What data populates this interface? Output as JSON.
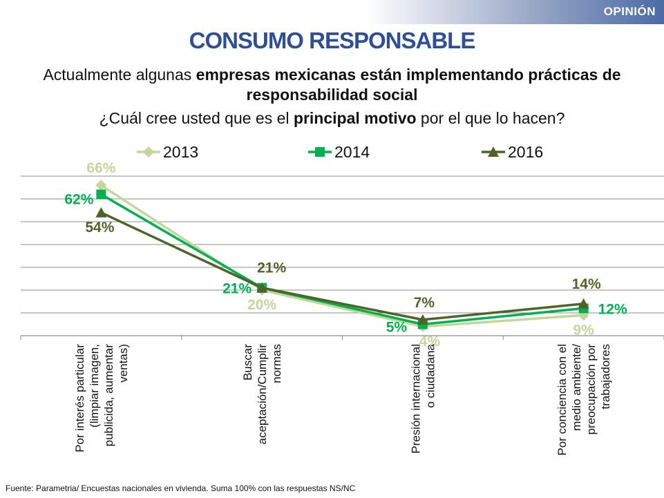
{
  "header": {
    "section_label": "OPINIÓN",
    "title": "CONSUMO RESPONSABLE",
    "subtitle_pre": "Actualmente algunas ",
    "subtitle_bold": "empresas mexicanas están implementando prácticas de responsabilidad social",
    "question_pre": "¿Cuál cree usted que es el ",
    "question_bold": "principal motivo",
    "question_post": " por el que lo hacen?"
  },
  "source": "Fuente: Parametria/ Encuestas nacionales en vivienda. Suma 100% con las respuestas NS/NC",
  "colors": {
    "s2013": "#c3d69b",
    "s2014": "#00b050",
    "s2016": "#4f6228",
    "title": "#2f4f95"
  },
  "chart_data": {
    "type": "line",
    "categories": [
      [
        "Por interés particular",
        "(limpiar imagen,",
        "publicida, aumentar",
        "ventas)"
      ],
      [
        "Buscar",
        "aceptación/Cumplir",
        "normas"
      ],
      [
        "Presión internacional",
        "o ciudadana"
      ],
      [
        "Por conciencia con el",
        "medio ambiente/",
        "preocupación por",
        "trabajadores"
      ]
    ],
    "series": [
      {
        "name": "2013",
        "values": [
          66,
          20,
          4,
          9
        ],
        "labels": [
          "66%",
          "20%",
          "4%",
          "9%"
        ],
        "marker": "diamond"
      },
      {
        "name": "2014",
        "values": [
          62,
          21,
          5,
          12
        ],
        "labels": [
          "62%",
          "21%",
          "5%",
          "12%"
        ],
        "marker": "square"
      },
      {
        "name": "2016",
        "values": [
          54,
          21,
          7,
          14
        ],
        "labels": [
          "54%",
          "21%",
          "7%",
          "14%"
        ],
        "marker": "triangle"
      }
    ],
    "ylim": [
      0,
      70
    ],
    "grid": true,
    "legend": "top"
  }
}
